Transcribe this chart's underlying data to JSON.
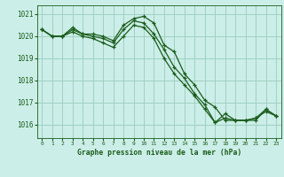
{
  "bg_color": "#cceee8",
  "grid_color": "#99ccbb",
  "line_color": "#1a5c1a",
  "tick_color": "#1a5c1a",
  "xlabel": "Graphe pression niveau de la mer (hPa)",
  "ylim": [
    1015.4,
    1021.4
  ],
  "xlim": [
    -0.5,
    23.5
  ],
  "yticks": [
    1016,
    1017,
    1018,
    1019,
    1020,
    1021
  ],
  "xticks": [
    0,
    1,
    2,
    3,
    4,
    5,
    6,
    7,
    8,
    9,
    10,
    11,
    12,
    13,
    14,
    15,
    16,
    17,
    18,
    19,
    20,
    21,
    22,
    23
  ],
  "series": [
    [
      1020.3,
      1020.0,
      1020.0,
      1020.4,
      1020.1,
      1020.1,
      1020.0,
      1019.8,
      1020.5,
      1020.8,
      1020.9,
      1020.6,
      1019.6,
      1019.3,
      1018.3,
      1017.8,
      1017.1,
      1016.8,
      1016.2,
      1016.2,
      1016.2,
      1016.3,
      1016.6,
      1016.4
    ],
    [
      1020.3,
      1020.0,
      1020.0,
      1020.3,
      1020.1,
      1020.0,
      1019.9,
      1019.7,
      1020.3,
      1020.7,
      1020.6,
      1020.1,
      1019.4,
      1018.6,
      1018.1,
      1017.4,
      1016.9,
      1016.1,
      1016.3,
      1016.2,
      1016.2,
      1016.2,
      1016.7,
      1016.4
    ],
    [
      1020.3,
      1020.0,
      1020.0,
      1020.2,
      1020.0,
      1019.9,
      1019.7,
      1019.5,
      1020.0,
      1020.5,
      1020.4,
      1019.9,
      1019.0,
      1018.3,
      1017.8,
      1017.3,
      1016.7,
      1016.1,
      1016.5,
      1016.2,
      1016.2,
      1016.3,
      1016.7,
      1016.4
    ]
  ]
}
